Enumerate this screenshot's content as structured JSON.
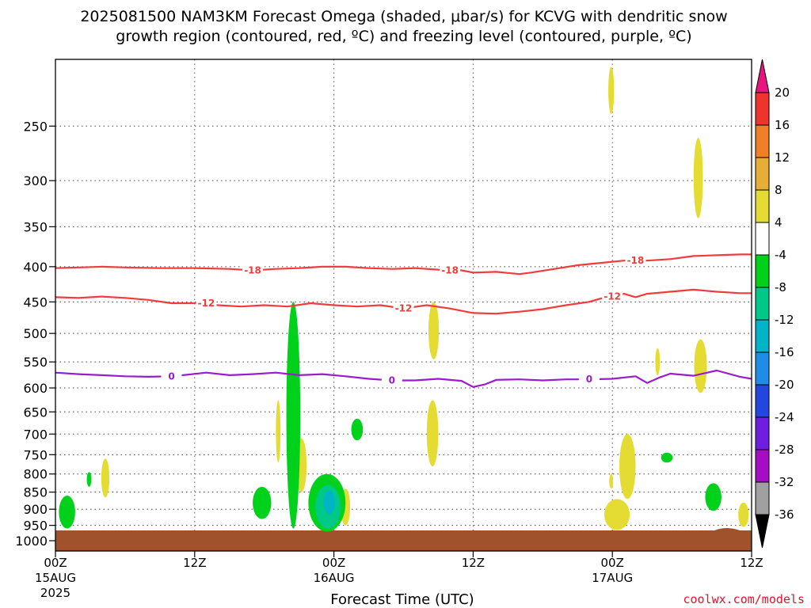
{
  "chart_data": {
    "type": "heatmap",
    "title_line1": "2025081500 NAM3KM Forecast Omega (shaded, μbar/s) for KCVG with dendritic snow",
    "title_line2": "growth region (contoured, red, ºC) and freezing level (contoured, purple, ºC)",
    "xlabel": "Forecast Time (UTC)",
    "credit": "coolwx.com/models",
    "x_range_hours": [
      0,
      60
    ],
    "x_ticks": [
      {
        "hour": 0,
        "label": "00Z",
        "date": "15AUG",
        "year": "2025"
      },
      {
        "hour": 12,
        "label": "12Z",
        "date": "",
        "year": ""
      },
      {
        "hour": 24,
        "label": "00Z",
        "date": "16AUG",
        "year": ""
      },
      {
        "hour": 36,
        "label": "12Z",
        "date": "",
        "year": ""
      },
      {
        "hour": 48,
        "label": "00Z",
        "date": "17AUG",
        "year": ""
      },
      {
        "hour": 60,
        "label": "12Z",
        "date": "",
        "year": ""
      }
    ],
    "y_axis": "pressure (hPa), log scale",
    "y_range_hpa": [
      1035,
      200
    ],
    "y_ticks": [
      250,
      300,
      350,
      400,
      450,
      500,
      550,
      600,
      650,
      700,
      750,
      800,
      850,
      900,
      950,
      1000
    ],
    "grid": true,
    "colorbar": {
      "label_values": [
        20,
        16,
        12,
        8,
        4,
        -4,
        -8,
        -12,
        -16,
        -20,
        -24,
        -28,
        -32,
        -36
      ],
      "bins": [
        {
          "from": 16,
          "to": 20,
          "color": "#f0332f"
        },
        {
          "from": 12,
          "to": 16,
          "color": "#f07f28"
        },
        {
          "from": 8,
          "to": 12,
          "color": "#e6ad37"
        },
        {
          "from": 4,
          "to": 8,
          "color": "#e5dc33"
        },
        {
          "from": -4,
          "to": 4,
          "color": "#ffffff"
        },
        {
          "from": -8,
          "to": -4,
          "color": "#00d21b"
        },
        {
          "from": -12,
          "to": -8,
          "color": "#00c887"
        },
        {
          "from": -16,
          "to": -12,
          "color": "#00b4c8"
        },
        {
          "from": -20,
          "to": -16,
          "color": "#1f8ce8"
        },
        {
          "from": -24,
          "to": -20,
          "color": "#2346e0"
        },
        {
          "from": -28,
          "to": -24,
          "color": "#6e1ee0"
        },
        {
          "from": -32,
          "to": -28,
          "color": "#a50cc4"
        },
        {
          "from": -36,
          "to": -32,
          "color": "#a0a0a0"
        }
      ],
      "top_triangle_color": "#e6157f",
      "bottom_triangle_color": "#000000"
    },
    "ground_color": "#a0522d",
    "contours": [
      {
        "label": "-18",
        "color": "#f03c3c",
        "kind": "dendritic-growth",
        "points": [
          [
            0,
            402
          ],
          [
            2,
            401
          ],
          [
            4,
            400
          ],
          [
            6,
            401
          ],
          [
            9,
            402
          ],
          [
            12,
            402
          ],
          [
            15,
            403
          ],
          [
            17,
            405
          ],
          [
            19,
            403
          ],
          [
            21,
            402
          ],
          [
            23,
            400
          ],
          [
            25,
            400
          ],
          [
            27,
            402
          ],
          [
            29,
            403
          ],
          [
            31,
            402
          ],
          [
            33,
            404
          ],
          [
            35,
            405
          ],
          [
            36,
            408
          ],
          [
            38,
            407
          ],
          [
            40,
            410
          ],
          [
            41,
            408
          ],
          [
            43,
            403
          ],
          [
            45,
            398
          ],
          [
            47,
            395
          ],
          [
            49,
            392
          ],
          [
            51,
            392
          ],
          [
            53,
            390
          ],
          [
            55,
            386
          ],
          [
            57,
            385
          ],
          [
            59,
            384
          ],
          [
            60,
            384
          ]
        ],
        "label_at": [
          [
            17,
            405
          ],
          [
            34,
            405
          ],
          [
            50,
            392
          ]
        ]
      },
      {
        "label": "-12",
        "color": "#f03c3c",
        "kind": "dendritic-growth",
        "points": [
          [
            0,
            443
          ],
          [
            2,
            444
          ],
          [
            4,
            442
          ],
          [
            6,
            444
          ],
          [
            8,
            447
          ],
          [
            10,
            452
          ],
          [
            12,
            452
          ],
          [
            14,
            455
          ],
          [
            16,
            457
          ],
          [
            18,
            455
          ],
          [
            20,
            457
          ],
          [
            22,
            452
          ],
          [
            24,
            455
          ],
          [
            26,
            457
          ],
          [
            28,
            455
          ],
          [
            30,
            460
          ],
          [
            32,
            455
          ],
          [
            34,
            460
          ],
          [
            36,
            467
          ],
          [
            38,
            468
          ],
          [
            40,
            465
          ],
          [
            42,
            461
          ],
          [
            44,
            455
          ],
          [
            46,
            450
          ],
          [
            47,
            445
          ],
          [
            48,
            442
          ],
          [
            49,
            438
          ],
          [
            50,
            443
          ],
          [
            51,
            438
          ],
          [
            53,
            435
          ],
          [
            55,
            432
          ],
          [
            57,
            435
          ],
          [
            59,
            437
          ],
          [
            60,
            437
          ]
        ],
        "label_at": [
          [
            13,
            452
          ],
          [
            30,
            460
          ],
          [
            48,
            442
          ]
        ]
      },
      {
        "label": "0",
        "color": "#9a1ccc",
        "kind": "freezing-level",
        "points": [
          [
            0,
            570
          ],
          [
            2,
            573
          ],
          [
            4,
            575
          ],
          [
            6,
            577
          ],
          [
            8,
            578
          ],
          [
            10,
            577
          ],
          [
            11,
            575
          ],
          [
            13,
            570
          ],
          [
            15,
            575
          ],
          [
            17,
            573
          ],
          [
            19,
            570
          ],
          [
            21,
            575
          ],
          [
            23,
            573
          ],
          [
            25,
            577
          ],
          [
            27,
            582
          ],
          [
            29,
            585
          ],
          [
            31,
            585
          ],
          [
            33,
            582
          ],
          [
            35,
            586
          ],
          [
            36,
            598
          ],
          [
            37,
            593
          ],
          [
            38,
            584
          ],
          [
            40,
            583
          ],
          [
            42,
            585
          ],
          [
            44,
            583
          ],
          [
            46,
            583
          ],
          [
            48,
            582
          ],
          [
            50,
            577
          ],
          [
            51,
            590
          ],
          [
            52,
            580
          ],
          [
            53,
            572
          ],
          [
            55,
            576
          ],
          [
            57,
            566
          ],
          [
            59,
            578
          ],
          [
            60,
            582
          ]
        ],
        "label_at": [
          [
            10,
            577
          ],
          [
            29,
            585
          ],
          [
            46,
            583
          ]
        ]
      }
    ],
    "omega_features": [
      {
        "range": [
          4,
          8
        ],
        "color": "#e5dc33",
        "center": [
          47.9,
          222
        ],
        "hours_span": 0.5,
        "hpa_span": [
          205,
          240
        ]
      },
      {
        "range": [
          4,
          8
        ],
        "color": "#e5dc33",
        "center": [
          55.4,
          300
        ],
        "hours_span": 0.8,
        "hpa_span": [
          260,
          340
        ]
      },
      {
        "range": [
          4,
          8
        ],
        "color": "#e5dc33",
        "center": [
          32.6,
          500
        ],
        "hours_span": 0.9,
        "hpa_span": [
          450,
          545
        ]
      },
      {
        "range": [
          4,
          8
        ],
        "color": "#e5dc33",
        "center": [
          51.9,
          550
        ],
        "hours_span": 0.4,
        "hpa_span": [
          525,
          575
        ]
      },
      {
        "range": [
          4,
          8
        ],
        "color": "#e5dc33",
        "center": [
          55.6,
          560
        ],
        "hours_span": 1.1,
        "hpa_span": [
          510,
          610
        ]
      },
      {
        "range": [
          4,
          8
        ],
        "color": "#e5dc33",
        "center": [
          32.5,
          690
        ],
        "hours_span": 1.0,
        "hpa_span": [
          625,
          780
        ]
      },
      {
        "range": [
          4,
          8
        ],
        "color": "#e5dc33",
        "center": [
          19.2,
          690
        ],
        "hours_span": 0.4,
        "hpa_span": [
          625,
          770
        ]
      },
      {
        "range": [
          4,
          8
        ],
        "color": "#e5dc33",
        "center": [
          21.2,
          770
        ],
        "hours_span": 0.9,
        "hpa_span": [
          710,
          850
        ]
      },
      {
        "range": [
          4,
          8
        ],
        "color": "#e5dc33",
        "center": [
          4.3,
          800
        ],
        "hours_span": 0.7,
        "hpa_span": [
          760,
          865
        ]
      },
      {
        "range": [
          4,
          8
        ],
        "color": "#e5dc33",
        "center": [
          25.0,
          880
        ],
        "hours_span": 0.8,
        "hpa_span": [
          840,
          950
        ]
      },
      {
        "range": [
          4,
          8
        ],
        "color": "#e5dc33",
        "center": [
          49.3,
          790
        ],
        "hours_span": 1.4,
        "hpa_span": [
          700,
          870
        ]
      },
      {
        "range": [
          4,
          8
        ],
        "color": "#e5dc33",
        "center": [
          48.4,
          925
        ],
        "hours_span": 2.2,
        "hpa_span": [
          870,
          965
        ]
      },
      {
        "range": [
          4,
          8
        ],
        "color": "#e5dc33",
        "center": [
          59.3,
          920
        ],
        "hours_span": 0.9,
        "hpa_span": [
          880,
          955
        ]
      },
      {
        "range": [
          4,
          8
        ],
        "color": "#e5dc33",
        "center": [
          47.9,
          820
        ],
        "hours_span": 0.3,
        "hpa_span": [
          800,
          840
        ]
      },
      {
        "range": [
          -8,
          -4
        ],
        "color": "#00d21b",
        "center": [
          20.5,
          700
        ],
        "hours_span": 1.2,
        "hpa_span": [
          450,
          960
        ]
      },
      {
        "range": [
          -8,
          -4
        ],
        "color": "#00d21b",
        "center": [
          1.0,
          905
        ],
        "hours_span": 1.4,
        "hpa_span": [
          860,
          960
        ]
      },
      {
        "range": [
          -8,
          -4
        ],
        "color": "#00d21b",
        "center": [
          17.8,
          880
        ],
        "hours_span": 1.6,
        "hpa_span": [
          835,
          930
        ]
      },
      {
        "range": [
          -8,
          -4
        ],
        "color": "#00d21b",
        "center": [
          23.4,
          880
        ],
        "hours_span": 3.2,
        "hpa_span": [
          800,
          970
        ]
      },
      {
        "range": [
          -8,
          -4
        ],
        "color": "#00d21b",
        "center": [
          26.0,
          690
        ],
        "hours_span": 1.0,
        "hpa_span": [
          665,
          715
        ]
      },
      {
        "range": [
          -8,
          -4
        ],
        "color": "#00d21b",
        "center": [
          2.9,
          815
        ],
        "hours_span": 0.4,
        "hpa_span": [
          795,
          835
        ]
      },
      {
        "range": [
          -8,
          -4
        ],
        "color": "#00d21b",
        "center": [
          52.7,
          755
        ],
        "hours_span": 1.0,
        "hpa_span": [
          745,
          770
        ]
      },
      {
        "range": [
          -8,
          -4
        ],
        "color": "#00d21b",
        "center": [
          56.7,
          865
        ],
        "hours_span": 1.4,
        "hpa_span": [
          825,
          905
        ]
      },
      {
        "range": [
          -12,
          -8
        ],
        "color": "#00c887",
        "center": [
          23.5,
          900
        ],
        "hours_span": 2.2,
        "hpa_span": [
          830,
          960
        ]
      },
      {
        "range": [
          -16,
          -12
        ],
        "color": "#00b4c8",
        "center": [
          23.6,
          880
        ],
        "hours_span": 1.0,
        "hpa_span": [
          845,
          915
        ]
      }
    ]
  }
}
